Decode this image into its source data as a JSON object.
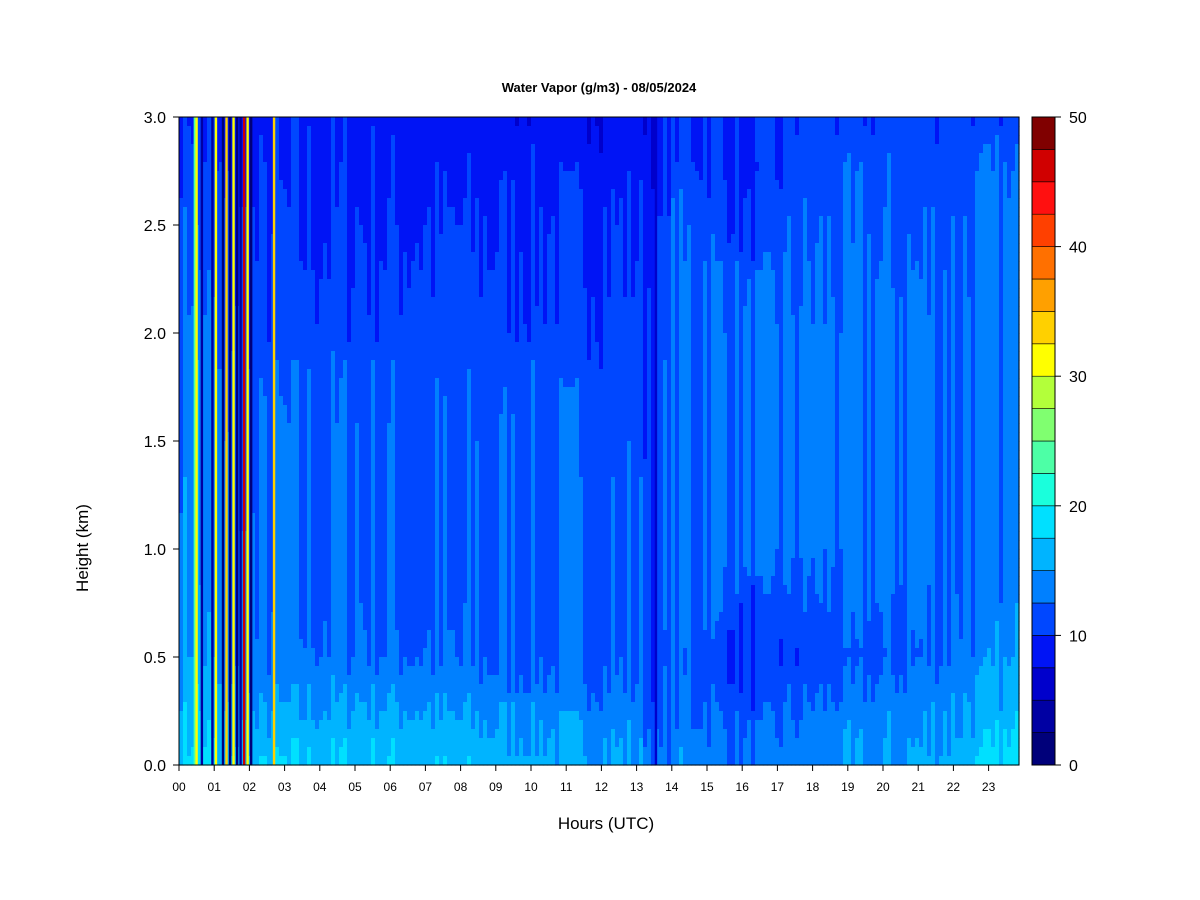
{
  "chart_data": {
    "type": "heatmap",
    "title": "Water Vapor (g/m3) - 08/05/2024",
    "xlabel": "Hours (UTC)",
    "ylabel": "Height (km)",
    "x_ticks": [
      "00",
      "01",
      "02",
      "03",
      "04",
      "05",
      "06",
      "07",
      "08",
      "09",
      "10",
      "11",
      "12",
      "13",
      "14",
      "15",
      "16",
      "17",
      "18",
      "19",
      "20",
      "21",
      "22",
      "23"
    ],
    "y_ticks": [
      "0.0",
      "0.5",
      "1.0",
      "1.5",
      "2.0",
      "2.5",
      "3.0"
    ],
    "xlim": [
      0,
      24
    ],
    "ylim": [
      0.0,
      3.0
    ],
    "colorbar": {
      "ticks": [
        "0",
        "10",
        "20",
        "30",
        "40",
        "50"
      ],
      "range": [
        0,
        50
      ],
      "levels": [
        {
          "lo": 0,
          "hi": 2.5,
          "color": "#00007a"
        },
        {
          "lo": 2.5,
          "hi": 5,
          "color": "#0000a3"
        },
        {
          "lo": 5,
          "hi": 7.5,
          "color": "#0000cc"
        },
        {
          "lo": 7.5,
          "hi": 10,
          "color": "#0014f5"
        },
        {
          "lo": 10,
          "hi": 12.5,
          "color": "#0047ff"
        },
        {
          "lo": 12.5,
          "hi": 15,
          "color": "#0080ff"
        },
        {
          "lo": 15,
          "hi": 17.5,
          "color": "#00b4ff"
        },
        {
          "lo": 17.5,
          "hi": 20,
          "color": "#00e0ff"
        },
        {
          "lo": 20,
          "hi": 22.5,
          "color": "#1affdc"
        },
        {
          "lo": 22.5,
          "hi": 25,
          "color": "#4dffa6"
        },
        {
          "lo": 25,
          "hi": 27.5,
          "color": "#80ff70"
        },
        {
          "lo": 27.5,
          "hi": 30,
          "color": "#b3ff3a"
        },
        {
          "lo": 30,
          "hi": 32.5,
          "color": "#ffff00"
        },
        {
          "lo": 32.5,
          "hi": 35,
          "color": "#ffd000"
        },
        {
          "lo": 35,
          "hi": 37.5,
          "color": "#ffa000"
        },
        {
          "lo": 37.5,
          "hi": 40,
          "color": "#ff7000"
        },
        {
          "lo": 40,
          "hi": 42.5,
          "color": "#ff4000"
        },
        {
          "lo": 42.5,
          "hi": 45,
          "color": "#ff1010"
        },
        {
          "lo": 45,
          "hi": 47.5,
          "color": "#d00000"
        },
        {
          "lo": 47.5,
          "hi": 50,
          "color": "#800000"
        }
      ]
    },
    "heights": [
      0.0,
      0.25,
      0.5,
      0.75,
      1.0,
      1.25,
      1.5,
      1.75,
      2.0,
      2.25,
      2.5,
      2.75,
      3.0
    ],
    "profiles": [
      {
        "hour": 0.0,
        "values": [
          17,
          16,
          15,
          14,
          14,
          13.5,
          13,
          13,
          12.5,
          12,
          11.5,
          11,
          10.5
        ]
      },
      {
        "hour": 0.5,
        "values": [
          19,
          18,
          16,
          15.5,
          15,
          15,
          15,
          15,
          14,
          13,
          12,
          11,
          10.5
        ]
      },
      {
        "hour": 1.5,
        "values": [
          16,
          14,
          12.5,
          12,
          12,
          11.5,
          11.5,
          11,
          10.5,
          10,
          9.5,
          9,
          8.5
        ]
      },
      {
        "hour": 3.0,
        "values": [
          17.5,
          15,
          13,
          12.5,
          12.5,
          12.5,
          12.5,
          12,
          11,
          10.5,
          10,
          9.5,
          9
        ]
      },
      {
        "hour": 5.0,
        "values": [
          17.5,
          15.5,
          13,
          12.5,
          12.5,
          12.5,
          12.5,
          12,
          11,
          10.5,
          10,
          9.5,
          9
        ]
      },
      {
        "hour": 7.0,
        "values": [
          17,
          15,
          12.5,
          12,
          12,
          12,
          12,
          11.5,
          11,
          10.5,
          10,
          9,
          8.5
        ]
      },
      {
        "hour": 9.0,
        "values": [
          16.5,
          14.5,
          12,
          12,
          12,
          12,
          12,
          11.5,
          11,
          10.5,
          10,
          9,
          8.5
        ]
      },
      {
        "hour": 11.0,
        "values": [
          16,
          14,
          12,
          12,
          12,
          12,
          11.5,
          11.5,
          11,
          10.5,
          10,
          9,
          8.5
        ]
      },
      {
        "hour": 13.0,
        "values": [
          15.5,
          13.5,
          12,
          12,
          12,
          12,
          11.5,
          11.5,
          11,
          10.5,
          10,
          9,
          8.5
        ]
      },
      {
        "hour": 13.6,
        "values": [
          12,
          11,
          10,
          10,
          10,
          10,
          10,
          10,
          10,
          9.5,
          9,
          8.5,
          8
        ]
      },
      {
        "hour": 14.0,
        "values": [
          14,
          13,
          12.5,
          13,
          13,
          13,
          13,
          13,
          12.5,
          12.5,
          12,
          11,
          10.5
        ]
      },
      {
        "hour": 15.0,
        "values": [
          14.5,
          12.5,
          11.5,
          13,
          13,
          13,
          13,
          13,
          12.5,
          12.5,
          12,
          10.5,
          10
        ]
      },
      {
        "hour": 16.2,
        "values": [
          13,
          11,
          10,
          10.5,
          12.5,
          12.5,
          12.5,
          12.5,
          12.5,
          11.5,
          10,
          8.5,
          9
        ]
      },
      {
        "hour": 17.5,
        "values": [
          14,
          12.5,
          10.5,
          11.5,
          13,
          13,
          13,
          13,
          13,
          12.5,
          12,
          11,
          10.5
        ]
      },
      {
        "hour": 19.0,
        "values": [
          14.5,
          13.5,
          11,
          12.5,
          13,
          13,
          13,
          13,
          13,
          12.5,
          12,
          11.5,
          10.5
        ]
      },
      {
        "hour": 20.5,
        "values": [
          15,
          14,
          12,
          12.5,
          13,
          13,
          13,
          13,
          13,
          12.5,
          12,
          11.5,
          11
        ]
      },
      {
        "hour": 22.0,
        "values": [
          16,
          15,
          13,
          13,
          13,
          13,
          13,
          13,
          13,
          12.5,
          12,
          11.5,
          11
        ]
      },
      {
        "hour": 23.0,
        "values": [
          17.5,
          16,
          14,
          13.5,
          13,
          13,
          13,
          13,
          13,
          12.5,
          12.5,
          12,
          11
        ]
      },
      {
        "hour": 23.9,
        "values": [
          18,
          16.5,
          14.5,
          14,
          13.5,
          13,
          13,
          13,
          13,
          12.5,
          12.5,
          12,
          11
        ]
      }
    ],
    "spikes": [
      {
        "hour": 0.45,
        "value": 23
      },
      {
        "hour": 0.5,
        "value": 30
      },
      {
        "hour": 0.65,
        "value": 3
      },
      {
        "hour": 0.95,
        "value": 3
      },
      {
        "hour": 1.05,
        "value": 30
      },
      {
        "hour": 1.25,
        "value": 2
      },
      {
        "hour": 1.35,
        "value": 33
      },
      {
        "hour": 1.45,
        "value": 2
      },
      {
        "hour": 1.55,
        "value": 30
      },
      {
        "hour": 1.65,
        "value": 1
      },
      {
        "hour": 1.75,
        "value": 3
      },
      {
        "hour": 1.85,
        "value": 45
      },
      {
        "hour": 1.95,
        "value": 32
      },
      {
        "hour": 2.05,
        "value": 2
      },
      {
        "hour": 2.7,
        "value": 33
      },
      {
        "hour": 13.55,
        "value": 5
      }
    ]
  }
}
